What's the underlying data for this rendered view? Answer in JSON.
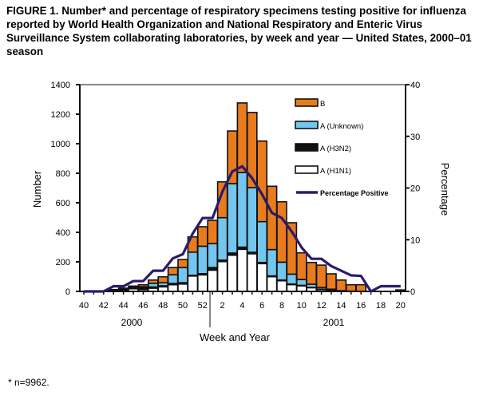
{
  "title": "FIGURE 1. Number* and percentage of respiratory specimens testing positive for influenza reported by World Health Organization and National Respiratory and Enteric Virus Surveillance System collaborating laboratories, by week and year — United States, 2000–01 season",
  "footnote": "* n=9962.",
  "chart_data": {
    "type": "bar",
    "stacked": true,
    "xlabel": "Week and Year",
    "ylabel": "Number",
    "y2label": "Percentage",
    "ylim": [
      0,
      1400
    ],
    "y2lim": [
      0,
      40
    ],
    "yticks": [
      0,
      200,
      400,
      600,
      800,
      1000,
      1200,
      1400
    ],
    "y2ticks": [
      0,
      10,
      20,
      30,
      40
    ],
    "year_labels": [
      "2000",
      "2001"
    ],
    "categories": [
      "40",
      "41",
      "42",
      "43",
      "44",
      "45",
      "46",
      "47",
      "48",
      "49",
      "50",
      "51",
      "52",
      "1",
      "2",
      "3",
      "4",
      "5",
      "6",
      "7",
      "8",
      "9",
      "10",
      "11",
      "12",
      "13",
      "14",
      "15",
      "16",
      "17",
      "18",
      "19",
      "20"
    ],
    "tick_labels": [
      "40",
      "42",
      "44",
      "46",
      "48",
      "50",
      "52",
      "2",
      "4",
      "6",
      "8",
      "10",
      "12",
      "14",
      "16",
      "18",
      "20"
    ],
    "legend_position": "top-right",
    "series": [
      {
        "name": "A (H1N1)",
        "color": "#FFFFFF",
        "values": [
          0,
          0,
          0,
          4,
          8,
          18,
          12,
          22,
          31,
          45,
          50,
          104,
          112,
          144,
          202,
          245,
          285,
          255,
          188,
          100,
          72,
          46,
          38,
          25,
          12,
          5,
          3,
          2,
          0,
          0,
          0,
          0,
          0
        ]
      },
      {
        "name": "A (H3N2)",
        "color": "#111111",
        "values": [
          0,
          0,
          0,
          8,
          14,
          18,
          20,
          8,
          7,
          9,
          9,
          5,
          8,
          18,
          10,
          15,
          15,
          10,
          8,
          5,
          5,
          4,
          3,
          2,
          3,
          10,
          2,
          0,
          0,
          0,
          0,
          0,
          0
        ]
      },
      {
        "name": "A (Unknown)",
        "color": "#73C6EE",
        "values": [
          0,
          0,
          0,
          0,
          0,
          0,
          0,
          25,
          21,
          59,
          103,
          157,
          186,
          162,
          287,
          470,
          505,
          438,
          276,
          178,
          121,
          67,
          40,
          22,
          12,
          0,
          0,
          0,
          0,
          0,
          0,
          0,
          0
        ]
      },
      {
        "name": "B",
        "color": "#E87B1E",
        "values": [
          0,
          0,
          0,
          0,
          0,
          0,
          13,
          22,
          40,
          49,
          54,
          103,
          132,
          157,
          243,
          356,
          471,
          509,
          546,
          429,
          409,
          348,
          180,
          147,
          151,
          104,
          72,
          43,
          45,
          0,
          0,
          0,
          10
        ]
      }
    ],
    "line_series": {
      "name": "Percentage Positive",
      "color": "#2A1A6E",
      "axis": "right",
      "values": [
        0,
        0,
        0,
        1,
        1,
        2,
        2,
        4,
        4,
        6.4,
        7.2,
        11.2,
        14.2,
        14.2,
        19.3,
        23.2,
        24.2,
        21.9,
        18.8,
        15.2,
        14.2,
        11.6,
        8.5,
        6.3,
        6.3,
        4.9,
        4,
        3.1,
        3,
        0,
        1,
        1,
        1
      ]
    }
  }
}
